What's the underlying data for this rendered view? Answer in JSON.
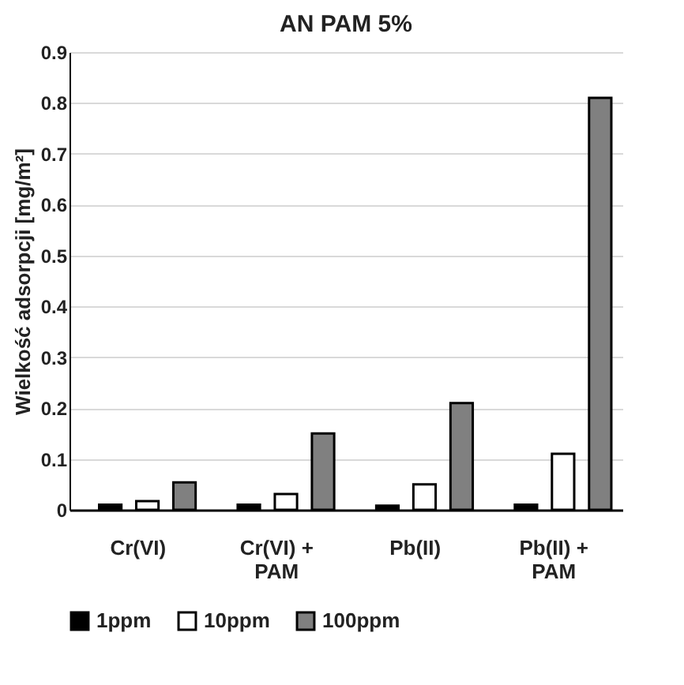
{
  "chart_data": {
    "type": "bar",
    "title": "AN PAM 5%",
    "ylabel": "Wielkość adsorpcji [mg/m²]",
    "categories": [
      "Cr(VI)",
      "Cr(VI) + PAM",
      "Pb(II)",
      "Pb(II) + PAM"
    ],
    "series": [
      {
        "name": "1ppm",
        "color": "#000000",
        "values": [
          0.01,
          0.01,
          0.008,
          0.01
        ]
      },
      {
        "name": "10ppm",
        "color": "#ffffff",
        "values": [
          0.017,
          0.031,
          0.05,
          0.11
        ]
      },
      {
        "name": "100ppm",
        "color": "#808080",
        "values": [
          0.054,
          0.15,
          0.21,
          0.81
        ]
      }
    ],
    "ylim": [
      0,
      0.9
    ],
    "yticks": [
      0,
      0.1,
      0.2,
      0.3,
      0.4,
      0.5,
      0.6,
      0.7,
      0.8,
      0.9
    ],
    "grid": "y",
    "legend": "bottom"
  }
}
